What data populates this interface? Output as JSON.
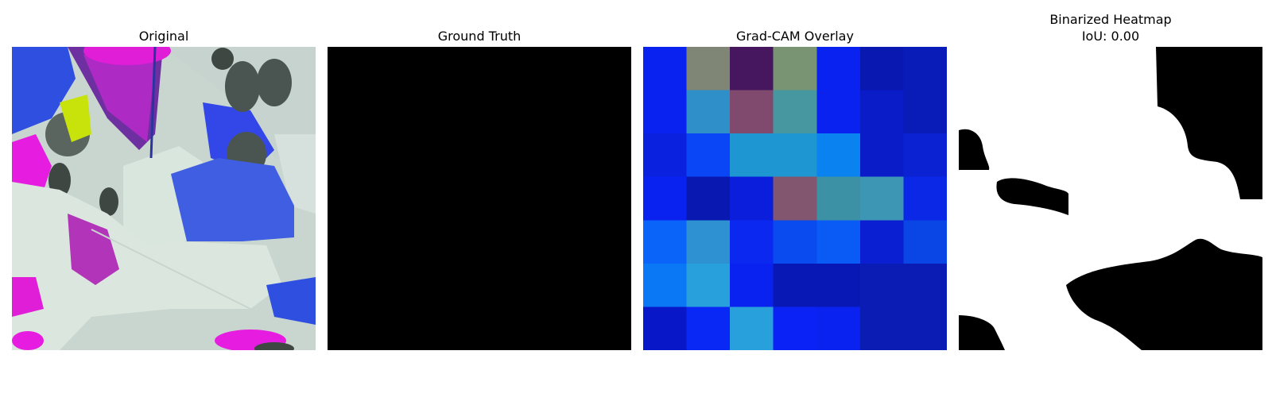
{
  "panels": [
    {
      "title": "Original"
    },
    {
      "title": "Ground Truth"
    },
    {
      "title": "Grad-CAM Overlay"
    },
    {
      "title": "Binarized Heatmap",
      "subtitle": "IoU: 0.00"
    }
  ],
  "gradcam_grid": [
    [
      "#0a22f0",
      "#7f8675",
      "#46175f",
      "#789472",
      "#0a22f0",
      "#0818b0",
      "#0a1cb8"
    ],
    [
      "#0a22f0",
      "#2f8fc8",
      "#7f4a6e",
      "#4697a0",
      "#0a22f0",
      "#0a1cc8",
      "#0a1cb8"
    ],
    [
      "#0a22e0",
      "#0a46f5",
      "#1e96d2",
      "#1e96d2",
      "#0a82f0",
      "#0a1cc8",
      "#0a22d2"
    ],
    [
      "#0a22f0",
      "#0818b0",
      "#0a1edc",
      "#82566e",
      "#3c91a5",
      "#3c96b4",
      "#0a28e6"
    ],
    [
      "#0a64fa",
      "#2d91d2",
      "#0a28f0",
      "#0a4bf0",
      "#0a5af5",
      "#0a1ed2",
      "#0a46e6"
    ],
    [
      "#0a78f5",
      "#28a0dc",
      "#0a22f0",
      "#0818b4",
      "#0818b4",
      "#0a1cb4",
      "#0a1cb4"
    ],
    [
      "#0818c8",
      "#0a28f5",
      "#28a0dc",
      "#0a22f5",
      "#0a22f0",
      "#0a1cb4",
      "#0a1cb4"
    ]
  ]
}
